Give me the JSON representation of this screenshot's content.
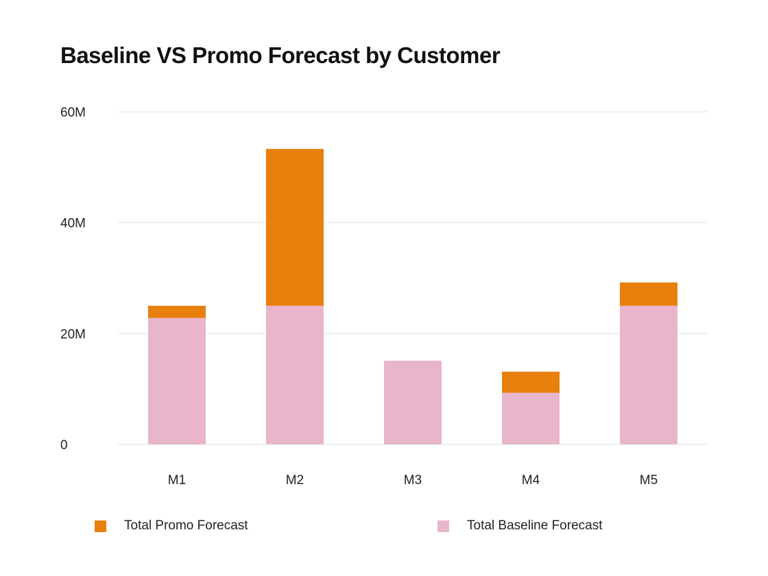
{
  "chart_data": {
    "type": "bar",
    "stacked": true,
    "title": "Baseline VS Promo Forecast by Customer",
    "xlabel": "",
    "ylabel": "",
    "categories": [
      "M1",
      "M2",
      "M3",
      "M4",
      "M5"
    ],
    "y_ticks": [
      0,
      20000000,
      40000000,
      60000000
    ],
    "y_tick_labels": [
      "0",
      "20M",
      "40M",
      "60M"
    ],
    "ylim": [
      0,
      60000000
    ],
    "grid": true,
    "legend_position": "bottom",
    "series": [
      {
        "name": "Total Baseline Forecast",
        "color": "#E8B5CB",
        "values": [
          22800000,
          25000000,
          15100000,
          9300000,
          25000000
        ]
      },
      {
        "name": "Total Promo Forecast",
        "color": "#E8800E",
        "values": [
          2200000,
          28300000,
          0,
          3800000,
          4200000
        ]
      }
    ]
  },
  "legend": {
    "promo_label": "Total Promo Forecast",
    "baseline_label": "Total Baseline Forecast",
    "promo_color": "#E8800E",
    "baseline_color": "#E8B5CB"
  }
}
